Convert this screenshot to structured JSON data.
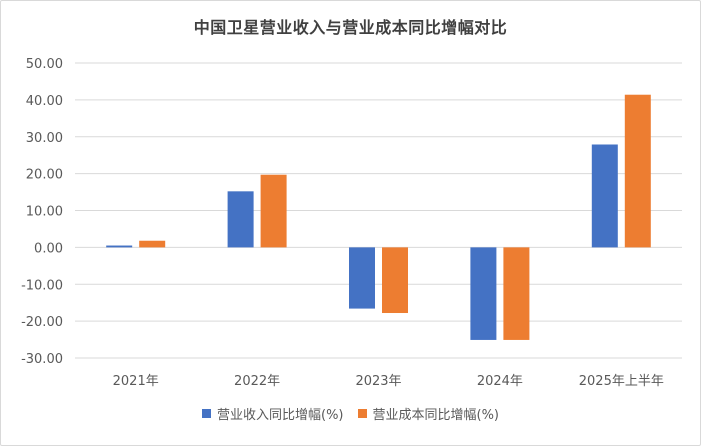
{
  "chart_data": {
    "type": "bar",
    "title": "中国卫星营业收入与营业成本同比增幅对比",
    "categories": [
      "2021年",
      "2022年",
      "2023年",
      "2024年",
      "2025年上半年"
    ],
    "series": [
      {
        "name": "营业收入同比增幅(%)",
        "color": "#4472c4",
        "values": [
          0.5,
          15.2,
          -16.6,
          -25.1,
          27.9
        ]
      },
      {
        "name": "营业成本同比增幅(%)",
        "color": "#ed7d31",
        "values": [
          1.8,
          19.7,
          -17.8,
          -25.1,
          41.4
        ]
      }
    ],
    "ylim": [
      -30,
      50
    ],
    "yticks": [
      "50.00",
      "40.00",
      "30.00",
      "20.00",
      "10.00",
      "0.00",
      "-10.00",
      "-20.00",
      "-30.00"
    ],
    "grid": true,
    "legend_position": "bottom"
  }
}
